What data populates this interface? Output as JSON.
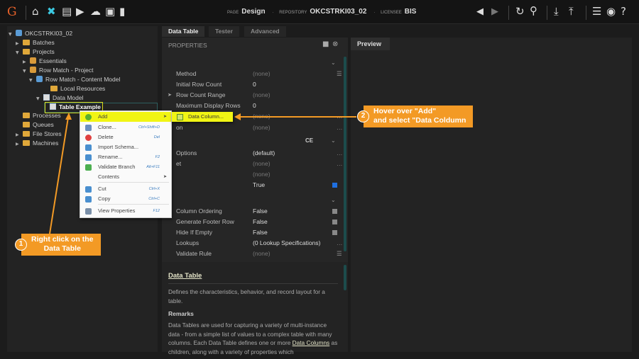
{
  "topbar": {
    "logo": "G",
    "page_label": "PAGE",
    "page_value": "Design",
    "repo_label": "REPOSITORY",
    "repo_value": "OKCSTRKI03_02",
    "licensee_label": "LICENSEE",
    "licensee_value": "BIS"
  },
  "tree": [
    {
      "label": "OKCSTRKI03_02",
      "icon": "repository-icon"
    },
    {
      "label": "Batches",
      "icon": "folder-icon"
    },
    {
      "label": "Projects",
      "icon": "folder-icon"
    },
    {
      "label": "Essentials",
      "icon": "project-icon"
    },
    {
      "label": "Row Match - Project",
      "icon": "project-icon"
    },
    {
      "label": "Row Match - Content Model",
      "icon": "content-model-icon"
    },
    {
      "label": "Local Resources",
      "icon": "folder-icon"
    },
    {
      "label": "Data Model",
      "icon": "data-model-icon"
    },
    {
      "label": "Table Example",
      "icon": "table-icon"
    },
    {
      "label": "Processes",
      "icon": "folder-icon"
    },
    {
      "label": "Queues",
      "icon": "folder-icon"
    },
    {
      "label": "File Stores",
      "icon": "folder-icon"
    },
    {
      "label": "Machines",
      "icon": "folder-icon"
    }
  ],
  "tabs": [
    "Data Table",
    "Tester",
    "Advanced"
  ],
  "properties": {
    "header": "PROPERTIES",
    "section_2_fragment": "CE",
    "rows": [
      {
        "name": "Method",
        "value": "(none)",
        "dim": true
      },
      {
        "name": "Initial Row Count",
        "value": "0",
        "dim": false
      },
      {
        "name": "Row Count Range",
        "value": "(none)",
        "dim": true
      },
      {
        "name": "Maximum Display Rows",
        "value": "0",
        "dim": false
      },
      {
        "name": "",
        "value": "(none)",
        "dim": true
      },
      {
        "name": "on",
        "value": "(none)",
        "dim": true
      },
      {
        "name": "Options",
        "value": "(default)",
        "dim": false
      },
      {
        "name": "et",
        "value": "(none)",
        "dim": true
      },
      {
        "name": "",
        "value": "(none)",
        "dim": true
      },
      {
        "name": "",
        "value": "True",
        "dim": false
      },
      {
        "name": "Column Ordering",
        "value": "False",
        "dim": false
      },
      {
        "name": "Generate Footer Row",
        "value": "False",
        "dim": false
      },
      {
        "name": "Hide If Empty",
        "value": "False",
        "dim": false
      },
      {
        "name": "Lookups",
        "value": "(0 Lookup Specifications)",
        "dim": false
      },
      {
        "name": "Validate Rule",
        "value": "(none)",
        "dim": true
      }
    ]
  },
  "help": {
    "title": "Data Table",
    "description": "Defines the characteristics, behavior, and record layout for a table.",
    "remarks_title": "Remarks",
    "remarks_before": "Data Tables are used for capturing a variety of multi-instance data - from a simple list of values to a complex table with many columns. Each Data Table defines one or more ",
    "remarks_link": "Data Columns",
    "remarks_after": " as children, along with a variety of properties which"
  },
  "preview": {
    "tab": "Preview"
  },
  "context_menu": [
    {
      "label": "Add",
      "shortcut": "",
      "submenu": true,
      "icon": "add-icon",
      "color": "#5bb02e"
    },
    {
      "label": "Clone...",
      "shortcut": "Ctrl+Shift+D",
      "icon": "clone-icon",
      "color": "#6b8fbf"
    },
    {
      "label": "Delete",
      "shortcut": "Del",
      "icon": "delete-icon",
      "color": "#e04040"
    },
    {
      "label": "Import Schema...",
      "shortcut": "",
      "icon": "import-schema-icon",
      "color": "#4a8fcf"
    },
    {
      "label": "Rename...",
      "shortcut": "F2",
      "icon": "rename-icon",
      "color": "#4a8fcf"
    },
    {
      "label": "Validate Branch",
      "shortcut": "Alt+F11",
      "icon": "validate-icon",
      "color": "#4caf50"
    },
    {
      "label": "Contents",
      "shortcut": "",
      "submenu": true,
      "icon": "",
      "color": ""
    },
    {
      "label": "Cut",
      "shortcut": "Ctrl+X",
      "icon": "cut-icon",
      "color": "#4a8fcf"
    },
    {
      "label": "Copy",
      "shortcut": "Ctrl+C",
      "icon": "copy-icon",
      "color": "#4a8fcf"
    },
    {
      "label": "View Properties",
      "shortcut": "F12",
      "icon": "view-properties-icon",
      "color": "#7a8fa8"
    }
  ],
  "submenu": {
    "label": "Data Column..."
  },
  "callouts": [
    {
      "number": "1",
      "text_line1": "Right click on the",
      "text_line2": "Data Table"
    },
    {
      "number": "2",
      "text_line1": "Hover over \"Add\"",
      "text_line2": "and select \"Data Coldumn"
    }
  ],
  "colors": {
    "accent": "#f39a25",
    "highlight": "#f1f514",
    "background": "#1c1c1c"
  }
}
